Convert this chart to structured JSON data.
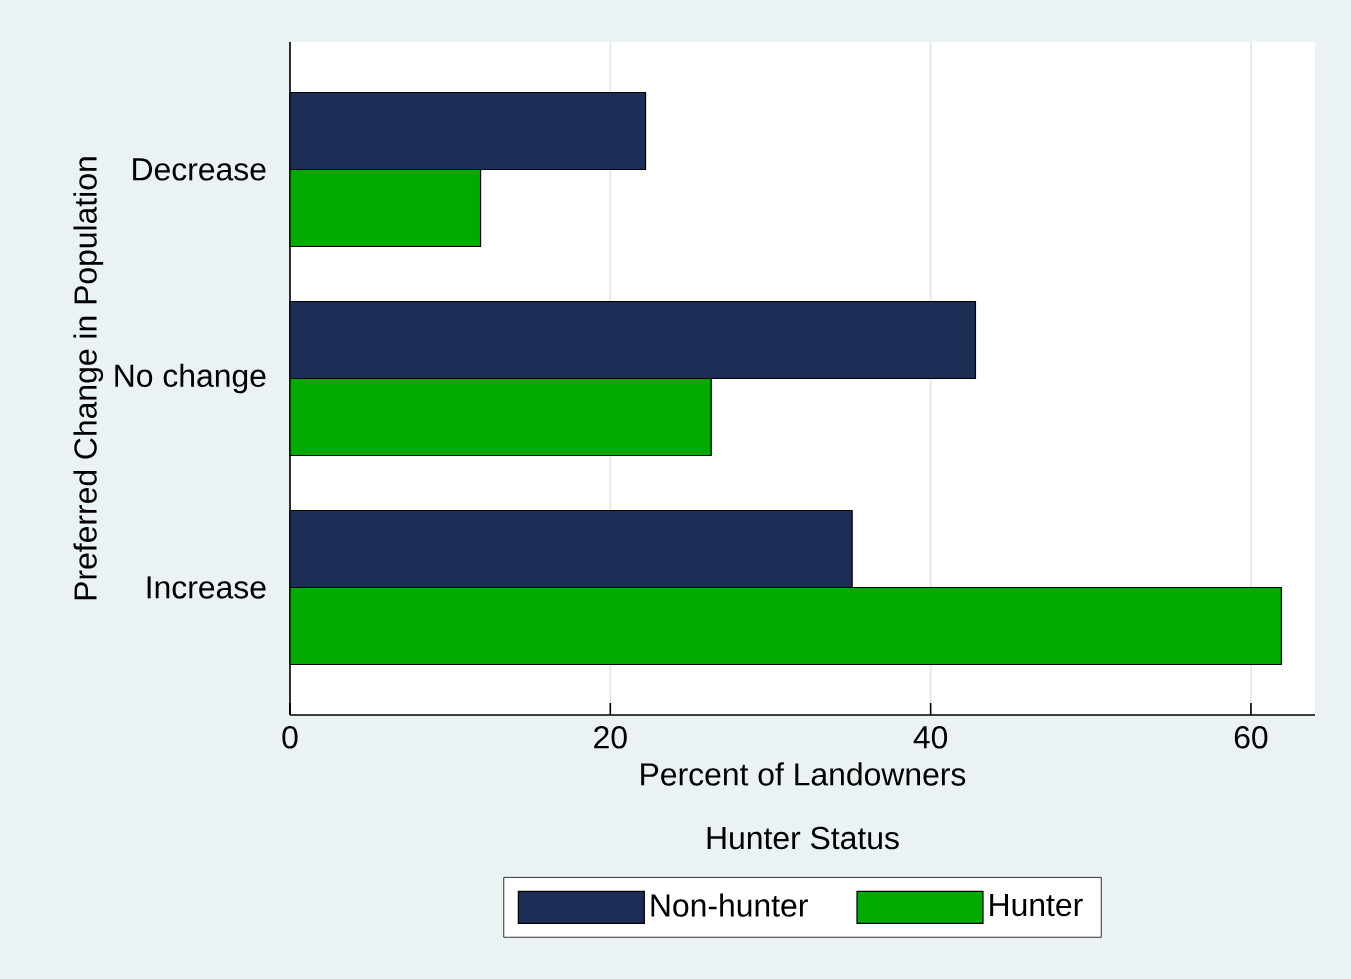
{
  "chart_data": {
    "type": "bar",
    "orientation": "horizontal",
    "xlabel": "Percent of Landowners",
    "ylabel": "Preferred Change in Population",
    "legend_title": "Hunter Status",
    "categories": [
      "Decrease",
      "No change",
      "Increase"
    ],
    "series": [
      {
        "name": "Non-hunter",
        "color": "#1e2d55",
        "values": [
          22.2,
          42.8,
          35.1
        ]
      },
      {
        "name": "Hunter",
        "color": "#00aa00",
        "values": [
          11.9,
          26.3,
          61.9
        ]
      }
    ],
    "xlim": [
      0,
      64
    ],
    "xticks": [
      0,
      20,
      40,
      60
    ],
    "grid": "x",
    "legend": "bottom"
  }
}
